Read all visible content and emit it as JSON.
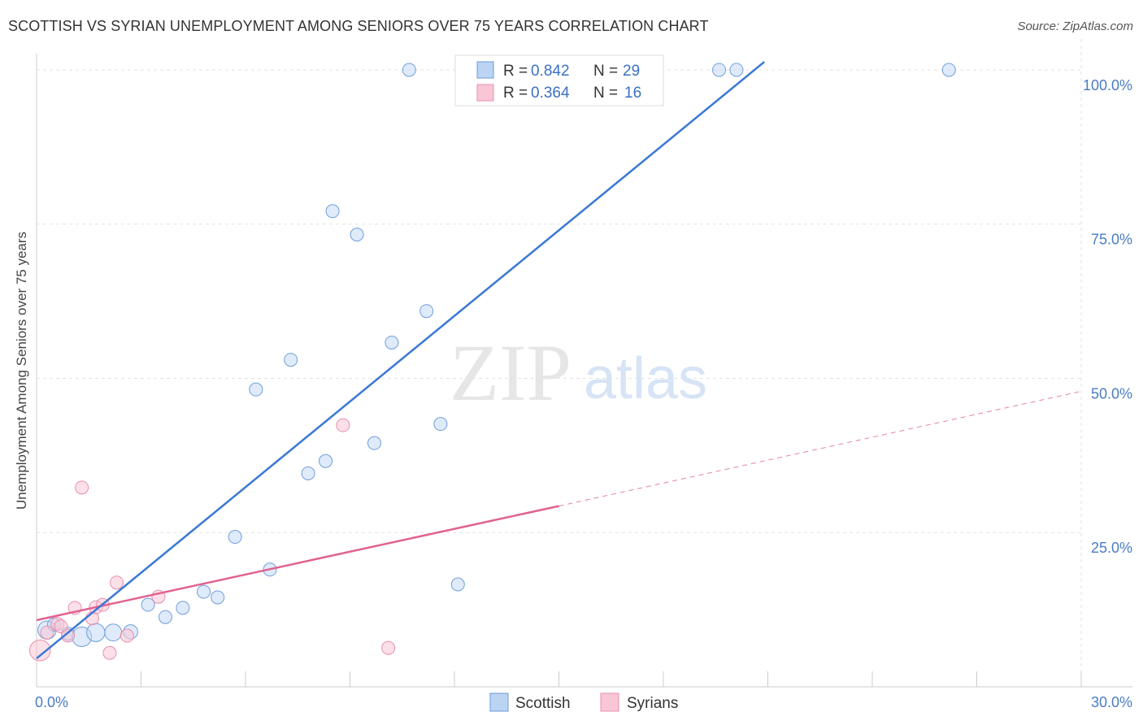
{
  "header": {
    "title": "SCOTTISH VS SYRIAN UNEMPLOYMENT AMONG SENIORS OVER 75 YEARS CORRELATION CHART",
    "source": "Source: ZipAtlas.com"
  },
  "watermark": {
    "zip": "ZIP",
    "atlas": "atlas"
  },
  "chart_data": {
    "type": "scatter",
    "title": "SCOTTISH VS SYRIAN UNEMPLOYMENT AMONG SENIORS OVER 75 YEARS CORRELATION CHART",
    "ylabel": "Unemployment Among Seniors over 75 years",
    "xlabel": "",
    "xlim": [
      0,
      30
    ],
    "ylim": [
      0,
      105
    ],
    "x_tick_labels": [
      "0.0%",
      "30.0%"
    ],
    "y_ticks": [
      25,
      50,
      75,
      100
    ],
    "y_tick_labels": [
      "25.0%",
      "50.0%",
      "75.0%",
      "100.0%"
    ],
    "grid": true,
    "legend_position": "top-center",
    "colors": {
      "Scottish": "#3a78d4",
      "Syrians": "#e0628f"
    },
    "series": [
      {
        "name": "Scottish",
        "r_label": "R =",
        "r_value": "0.842",
        "n_label": "N =",
        "n_value": "29",
        "trend": {
          "x": [
            0,
            20.9
          ],
          "y": [
            4.6,
            101.3
          ]
        },
        "points": [
          {
            "x": 0.3,
            "y": 9.2,
            "s": 1.4
          },
          {
            "x": 0.5,
            "y": 10.1,
            "s": 1
          },
          {
            "x": 0.9,
            "y": 8.6,
            "s": 1
          },
          {
            "x": 1.3,
            "y": 8.1,
            "s": 1.5
          },
          {
            "x": 1.7,
            "y": 8.8,
            "s": 1.4
          },
          {
            "x": 2.2,
            "y": 8.8,
            "s": 1.3
          },
          {
            "x": 2.7,
            "y": 8.9,
            "s": 1.1
          },
          {
            "x": 3.2,
            "y": 13.3,
            "s": 1
          },
          {
            "x": 3.7,
            "y": 11.3,
            "s": 1
          },
          {
            "x": 4.2,
            "y": 12.8,
            "s": 1
          },
          {
            "x": 4.8,
            "y": 15.4,
            "s": 1
          },
          {
            "x": 5.2,
            "y": 14.5,
            "s": 1
          },
          {
            "x": 5.7,
            "y": 24.3,
            "s": 1
          },
          {
            "x": 6.7,
            "y": 19.0,
            "s": 1
          },
          {
            "x": 6.3,
            "y": 48.2,
            "s": 1
          },
          {
            "x": 7.3,
            "y": 53.0,
            "s": 1
          },
          {
            "x": 7.8,
            "y": 34.6,
            "s": 1
          },
          {
            "x": 8.3,
            "y": 36.6,
            "s": 1
          },
          {
            "x": 8.5,
            "y": 77.1,
            "s": 1
          },
          {
            "x": 9.2,
            "y": 73.3,
            "s": 1
          },
          {
            "x": 9.7,
            "y": 39.5,
            "s": 1
          },
          {
            "x": 10.2,
            "y": 55.8,
            "s": 1
          },
          {
            "x": 10.7,
            "y": 100,
            "s": 1
          },
          {
            "x": 11.2,
            "y": 60.9,
            "s": 1
          },
          {
            "x": 11.6,
            "y": 42.6,
            "s": 1
          },
          {
            "x": 12.1,
            "y": 16.6,
            "s": 1
          },
          {
            "x": 19.6,
            "y": 100,
            "s": 1
          },
          {
            "x": 20.1,
            "y": 100,
            "s": 1
          },
          {
            "x": 26.2,
            "y": 100,
            "s": 1
          }
        ]
      },
      {
        "name": "Syrians",
        "r_label": "R =",
        "r_value": "0.364",
        "n_label": "N =",
        "n_value": "16",
        "trend": {
          "x": [
            0,
            15
          ],
          "y": [
            10.8,
            29.3
          ]
        },
        "trend_dashed": {
          "x": [
            15,
            30
          ],
          "y": [
            29.3,
            47.9
          ]
        },
        "points": [
          {
            "x": 0.1,
            "y": 5.9,
            "s": 1.6
          },
          {
            "x": 0.3,
            "y": 8.8,
            "s": 1
          },
          {
            "x": 0.6,
            "y": 10.2,
            "s": 1
          },
          {
            "x": 0.7,
            "y": 9.8,
            "s": 1
          },
          {
            "x": 0.9,
            "y": 8.3,
            "s": 1
          },
          {
            "x": 1.1,
            "y": 12.8,
            "s": 1
          },
          {
            "x": 1.3,
            "y": 32.3,
            "s": 1
          },
          {
            "x": 1.6,
            "y": 11.1,
            "s": 1
          },
          {
            "x": 1.7,
            "y": 12.9,
            "s": 1
          },
          {
            "x": 1.9,
            "y": 13.3,
            "s": 1
          },
          {
            "x": 2.1,
            "y": 5.5,
            "s": 1
          },
          {
            "x": 2.3,
            "y": 16.9,
            "s": 1
          },
          {
            "x": 2.6,
            "y": 8.3,
            "s": 1
          },
          {
            "x": 3.5,
            "y": 14.6,
            "s": 1
          },
          {
            "x": 8.8,
            "y": 42.4,
            "s": 1
          },
          {
            "x": 10.1,
            "y": 6.3,
            "s": 1
          }
        ]
      }
    ]
  }
}
